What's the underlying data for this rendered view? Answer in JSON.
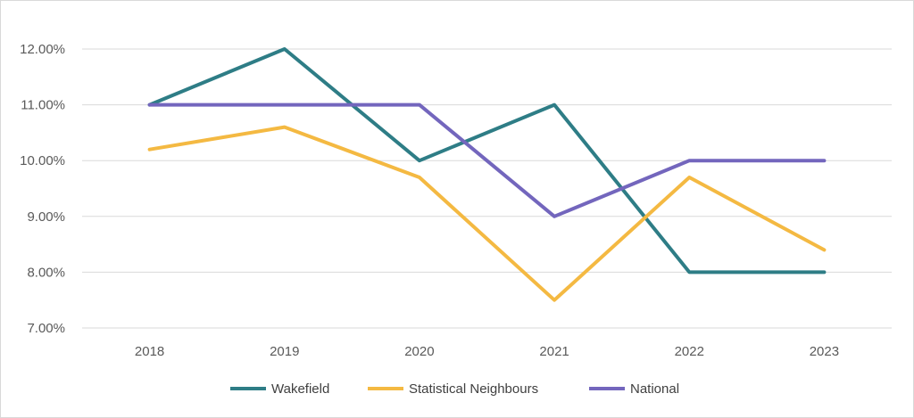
{
  "chart_data": {
    "type": "line",
    "title": "",
    "xlabel": "",
    "ylabel": "",
    "categories": [
      "2018",
      "2019",
      "2020",
      "2021",
      "2022",
      "2023"
    ],
    "ylim": [
      7,
      12.5
    ],
    "yticks": [
      7,
      8,
      9,
      10,
      11,
      12
    ],
    "ytick_labels": [
      "7.00%",
      "8.00%",
      "9.00%",
      "10.00%",
      "11.00%",
      "12.00%"
    ],
    "grid": true,
    "legend_position": "bottom",
    "series": [
      {
        "name": "Wakefield",
        "color": "#2e7d86",
        "values": [
          11.0,
          12.0,
          10.0,
          11.0,
          8.0,
          8.0
        ]
      },
      {
        "name": "Statistical Neighbours",
        "color": "#f4b942",
        "values": [
          10.2,
          10.6,
          9.7,
          7.5,
          9.7,
          8.4
        ]
      },
      {
        "name": "National",
        "color": "#7366bd",
        "values": [
          11.0,
          11.0,
          11.0,
          9.0,
          10.0,
          10.0
        ]
      }
    ]
  }
}
